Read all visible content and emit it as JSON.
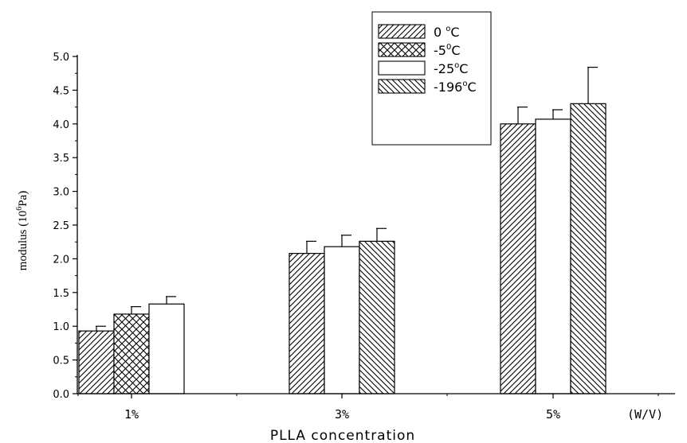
{
  "chart_data": {
    "type": "bar",
    "categories": [
      "1%",
      "3%",
      "5%"
    ],
    "xlabel": "PLLA concentration",
    "x_unit": "(W/V)",
    "ylabel": "modulus (10",
    "ylabel_exp": "6",
    "ylabel_unit": "Pa)",
    "ylim": [
      0,
      5.0
    ],
    "yticks": [
      "0.0",
      "0.5",
      "1.0",
      "1.5",
      "2.0",
      "2.5",
      "3.0",
      "3.5",
      "4.0",
      "4.5",
      "5.0"
    ],
    "legend_placement": "top-center",
    "series": [
      {
        "name": "0 °C",
        "legend_main": "0 ",
        "legend_sup": "o",
        "legend_suffix": "C",
        "pattern": "diag-right",
        "values": [
          0.93,
          2.08,
          4.0
        ],
        "errors": [
          0.07,
          0.18,
          0.25
        ]
      },
      {
        "name": "-5°C",
        "legend_main": "-5",
        "legend_sup": "0",
        "legend_suffix": "C",
        "pattern": "cross",
        "values": [
          1.18,
          null,
          null
        ],
        "errors": [
          0.11,
          null,
          null
        ]
      },
      {
        "name": "-25°C",
        "legend_main": "-25",
        "legend_sup": "o",
        "legend_suffix": "C",
        "pattern": "open",
        "values": [
          1.33,
          2.18,
          4.07
        ],
        "errors": [
          0.11,
          0.17,
          0.14
        ]
      },
      {
        "name": "-196°C",
        "legend_main": "-196",
        "legend_sup": "o",
        "legend_suffix": "C",
        "pattern": "diag-left",
        "values": [
          null,
          2.26,
          4.3
        ],
        "errors": [
          null,
          0.19,
          0.54
        ]
      }
    ]
  }
}
